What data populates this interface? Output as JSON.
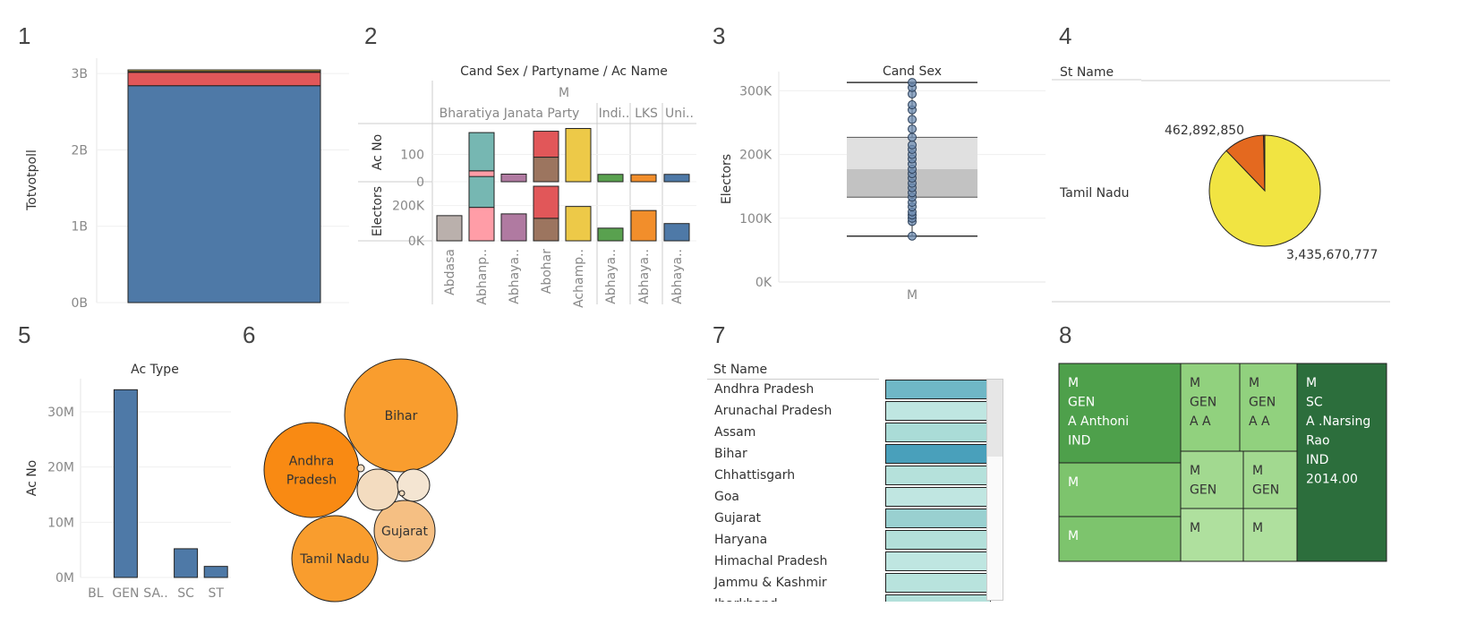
{
  "panel_numbers": [
    "1",
    "2",
    "3",
    "4",
    "5",
    "6",
    "7",
    "8"
  ],
  "chart_data": [
    {
      "id": 1,
      "type": "bar",
      "subtype": "stacked",
      "ylabel": "Totvotpoll",
      "y_ticks": [
        "0B",
        "1B",
        "2B",
        "3B"
      ],
      "ylim": [
        0,
        3200000000
      ],
      "series": [
        {
          "color": "#4e79a7",
          "values": [
            2840000000
          ]
        },
        {
          "color": "#e15759",
          "values": [
            175000000
          ]
        },
        {
          "color": "#f28e2b",
          "values": [
            12000000
          ]
        },
        {
          "color": "#edc948",
          "values": [
            20000000
          ]
        }
      ],
      "grid": true
    },
    {
      "id": 2,
      "type": "bar",
      "subtype": "stacked-multi-pane",
      "header_title": "Cand Sex  /  Partyname  /  Ac Name",
      "sex": "M",
      "parties": [
        "Bharatiya Janata Party",
        "Indi..",
        "LKS",
        "Uni.."
      ],
      "x_labels": [
        "Abdasa",
        "Abhanp..",
        "Abhaya..",
        "Abohar",
        "Achamp..",
        "Abhaya..",
        "Abhaya..",
        "Abhaya.."
      ],
      "row1": {
        "label": "Ac No",
        "ticks": [
          "0",
          "100"
        ],
        "ylim": [
          0,
          200
        ],
        "stacks": [
          [],
          [
            {
              "v": 40,
              "c": "#ff9da7"
            },
            {
              "v": 140,
              "c": "#76b7b2"
            }
          ],
          [
            {
              "v": 28,
              "c": "#b07aa1"
            }
          ],
          [
            {
              "v": 90,
              "c": "#9c755f"
            },
            {
              "v": 95,
              "c": "#e15759"
            }
          ],
          [
            {
              "v": 195,
              "c": "#edc948"
            }
          ],
          [
            {
              "v": 27,
              "c": "#59a14f"
            }
          ],
          [
            {
              "v": 26,
              "c": "#f28e2b"
            }
          ],
          [
            {
              "v": 27,
              "c": "#4e79a7"
            }
          ]
        ]
      },
      "row2": {
        "label": "Electors",
        "ticks": [
          "0K",
          "200K"
        ],
        "ylim": [
          0,
          310000
        ],
        "stacks": [
          [
            {
              "v": 143000,
              "c": "#bab0ac"
            }
          ],
          [
            {
              "v": 190000,
              "c": "#ff9da7"
            },
            {
              "v": 175000,
              "c": "#76b7b2"
            }
          ],
          [
            {
              "v": 153000,
              "c": "#b07aa1"
            }
          ],
          [
            {
              "v": 128000,
              "c": "#9c755f"
            },
            {
              "v": 182000,
              "c": "#e15759"
            }
          ],
          [
            {
              "v": 195000,
              "c": "#edc948"
            }
          ],
          [
            {
              "v": 72000,
              "c": "#59a14f"
            }
          ],
          [
            {
              "v": 172000,
              "c": "#f28e2b"
            }
          ],
          [
            {
              "v": 98000,
              "c": "#4e79a7"
            }
          ]
        ]
      }
    },
    {
      "id": 3,
      "type": "scatter",
      "subtype": "box-plot",
      "title": "Cand Sex",
      "ylabel": "Electors",
      "y_ticks": [
        "0K",
        "100K",
        "200K",
        "300K"
      ],
      "ylim": [
        0,
        330000
      ],
      "x_label": "M",
      "box": {
        "min": 72000,
        "q1": 133000,
        "median": 177000,
        "q3": 227000,
        "max": 313000
      },
      "points": [
        72000,
        95000,
        100000,
        105000,
        110000,
        118000,
        125000,
        133000,
        140000,
        148000,
        155000,
        163000,
        170000,
        177000,
        185000,
        193000,
        200000,
        208000,
        215000,
        227000,
        240000,
        255000,
        270000,
        278000,
        295000,
        305000,
        313000
      ]
    },
    {
      "id": 4,
      "type": "pie",
      "column_header": "St Name",
      "row_label": "Tamil Nadu",
      "slices": [
        {
          "value": 3435670777,
          "label": "3,435,670,777",
          "color": "#f1e442"
        },
        {
          "value": 462892850,
          "label": "462,892,850",
          "color": "#e4691f"
        },
        {
          "value": 14000000,
          "label": "",
          "color": "#b5441b"
        }
      ]
    },
    {
      "id": 5,
      "type": "bar",
      "title": "Ac Type",
      "ylabel": "Ac No",
      "categories": [
        "BL",
        "GEN",
        "SA..",
        "SC",
        "ST"
      ],
      "values": [
        0,
        34000000,
        0,
        5200000,
        2000000
      ],
      "y_ticks": [
        "0M",
        "10M",
        "20M",
        "30M"
      ],
      "ylim": [
        0,
        36000000
      ],
      "color": "#4e79a7"
    },
    {
      "id": 6,
      "type": "scatter",
      "subtype": "packed-bubbles",
      "bubbles": [
        {
          "label": "Bihar",
          "size": 63,
          "color": "#f99d2e"
        },
        {
          "label": "Andhra Pradesh",
          "size": 53,
          "color": "#f98a13"
        },
        {
          "label": "Tamil Nadu",
          "size": 48,
          "color": "#f99d2e"
        },
        {
          "label": "Gujarat",
          "size": 34,
          "color": "#f5bf83"
        },
        {
          "label": "",
          "size": 23,
          "color": "#f3dcc0"
        },
        {
          "label": "",
          "size": 18,
          "color": "#f4e5d2"
        },
        {
          "label": "",
          "size": 4,
          "color": "#f3dcc0"
        },
        {
          "label": "",
          "size": 3,
          "color": "#f3dcc0"
        }
      ]
    },
    {
      "id": 7,
      "type": "heatmap",
      "column_header": "St Name",
      "rows": [
        {
          "label": "Andhra Pradesh",
          "color": "#6fb7c6"
        },
        {
          "label": "Arunachal Pradesh",
          "color": "#bfe6e1"
        },
        {
          "label": "Assam",
          "color": "#aadcd7"
        },
        {
          "label": "Bihar",
          "color": "#49a0bb"
        },
        {
          "label": "Chhattisgarh",
          "color": "#b5e1db"
        },
        {
          "label": "Goa",
          "color": "#c0e6e1"
        },
        {
          "label": "Gujarat",
          "color": "#99d0d0"
        },
        {
          "label": "Haryana",
          "color": "#b3e0da"
        },
        {
          "label": "Himachal Pradesh",
          "color": "#bfe6e1"
        },
        {
          "label": "Jammu & Kashmir",
          "color": "#b8e3dd"
        },
        {
          "label": "Jharkhand",
          "color": "#b3e0da"
        }
      ]
    },
    {
      "id": 8,
      "type": "heatmap",
      "subtype": "treemap",
      "tiles": [
        {
          "lines": [
            "M",
            "GEN",
            "A Anthoni",
            "IND"
          ],
          "color": "#4ea04b",
          "light": true
        },
        {
          "lines": [
            "M"
          ],
          "color": "#7dc46d",
          "light": true
        },
        {
          "lines": [
            "M"
          ],
          "color": "#7dc46d",
          "light": true
        },
        {
          "lines": [
            "M",
            "GEN",
            "A A"
          ],
          "color": "#91d17e",
          "light": false
        },
        {
          "lines": [
            "M",
            "GEN",
            "A A"
          ],
          "color": "#91d17e",
          "light": false
        },
        {
          "lines": [
            "M",
            "GEN"
          ],
          "color": "#a2d990",
          "light": false
        },
        {
          "lines": [
            "M",
            "GEN"
          ],
          "color": "#a2d990",
          "light": false
        },
        {
          "lines": [
            "M"
          ],
          "color": "#afe09e",
          "light": false
        },
        {
          "lines": [
            "M"
          ],
          "color": "#afe09e",
          "light": false
        },
        {
          "lines": [
            "M",
            "SC",
            "A .Narsing",
            "Rao",
            "IND",
            "2014.00"
          ],
          "color": "#2c6e3c",
          "light": true
        }
      ]
    }
  ]
}
